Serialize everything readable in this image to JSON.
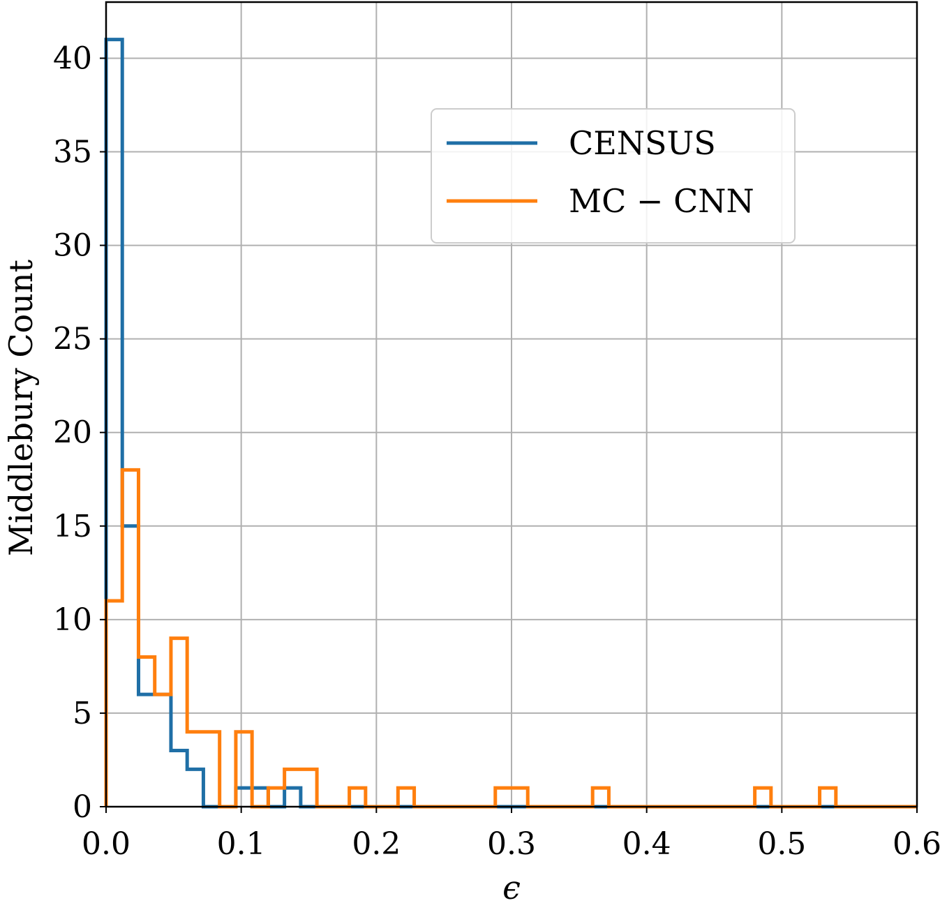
{
  "chart_data": {
    "type": "histogram-step",
    "xlabel": "ϵ",
    "ylabel": "Middlebury Count",
    "xlim": [
      0.0,
      0.6
    ],
    "ylim": [
      0,
      43
    ],
    "xticks": [
      0.0,
      0.1,
      0.2,
      0.3,
      0.4,
      0.5,
      0.6
    ],
    "xtick_labels": [
      "0.0",
      "0.1",
      "0.2",
      "0.3",
      "0.4",
      "0.5",
      "0.6"
    ],
    "yticks": [
      0,
      5,
      10,
      15,
      20,
      25,
      30,
      35,
      40
    ],
    "ytick_labels": [
      "0",
      "5",
      "10",
      "15",
      "20",
      "25",
      "30",
      "35",
      "40"
    ],
    "grid": true,
    "legend_position": "upper-right",
    "series": [
      {
        "name": "CENSUS",
        "color": "#1f6fa6",
        "bin_edges": [
          0.0,
          0.012,
          0.024,
          0.036,
          0.048,
          0.06,
          0.072,
          0.084,
          0.096,
          0.108,
          0.12,
          0.132,
          0.144,
          0.6
        ],
        "counts": [
          41,
          15,
          6,
          6,
          3,
          2,
          0,
          0,
          1,
          1,
          0,
          1,
          0
        ]
      },
      {
        "name": "MC − CNN",
        "color": "#ff7f0e",
        "bin_edges": [
          0.0,
          0.012,
          0.024,
          0.036,
          0.048,
          0.06,
          0.072,
          0.084,
          0.096,
          0.108,
          0.12,
          0.132,
          0.156,
          0.18,
          0.192,
          0.216,
          0.228,
          0.288,
          0.312,
          0.36,
          0.372,
          0.48,
          0.492,
          0.528,
          0.54,
          0.6
        ],
        "counts": [
          11,
          18,
          8,
          6,
          9,
          4,
          4,
          0,
          4,
          0,
          1,
          2,
          0,
          1,
          0,
          1,
          0,
          1,
          0,
          1,
          0,
          1,
          0,
          1,
          0
        ]
      }
    ]
  }
}
